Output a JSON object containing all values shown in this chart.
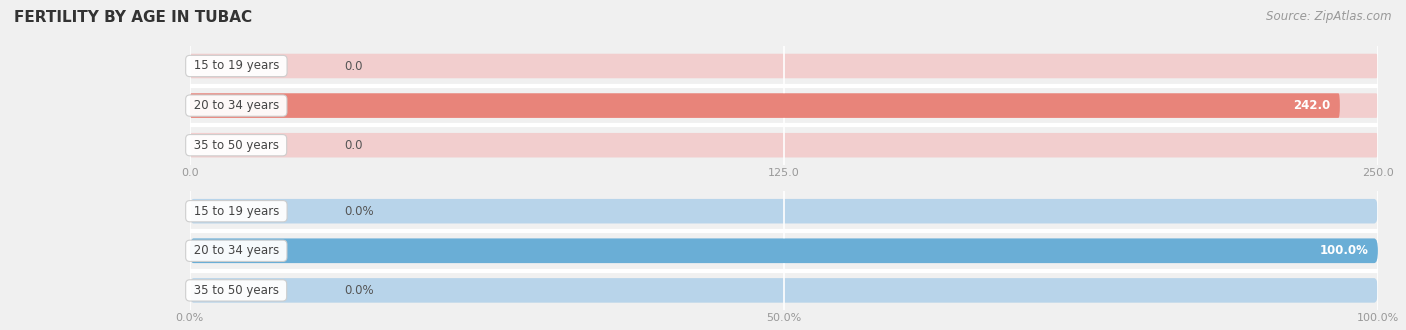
{
  "title": "FERTILITY BY AGE IN TUBAC",
  "source": "Source: ZipAtlas.com",
  "top_chart": {
    "categories": [
      "15 to 19 years",
      "20 to 34 years",
      "35 to 50 years"
    ],
    "values": [
      0.0,
      242.0,
      0.0
    ],
    "bar_color_full": "#e8847a",
    "bar_color_empty": "#f2cece",
    "bar_color_bg": "#ebebeb",
    "xlim": [
      0,
      250.0
    ],
    "xticks": [
      0.0,
      125.0,
      250.0
    ],
    "xtick_labels": [
      "0.0",
      "125.0",
      "250.0"
    ],
    "value_labels": [
      "0.0",
      "242.0",
      "0.0"
    ]
  },
  "bottom_chart": {
    "categories": [
      "15 to 19 years",
      "20 to 34 years",
      "35 to 50 years"
    ],
    "values": [
      0.0,
      100.0,
      0.0
    ],
    "bar_color_full": "#6aaed6",
    "bar_color_empty": "#b8d4ea",
    "bar_color_bg": "#ebebeb",
    "xlim": [
      0,
      100.0
    ],
    "xticks": [
      0.0,
      50.0,
      100.0
    ],
    "xtick_labels": [
      "0.0%",
      "50.0%",
      "100.0%"
    ],
    "value_labels": [
      "0.0%",
      "100.0%",
      "0.0%"
    ]
  },
  "bg_color": "#f0f0f0",
  "label_color": "#444444",
  "tick_color": "#999999",
  "label_fontsize": 8.5,
  "tick_fontsize": 8.0,
  "title_fontsize": 11,
  "source_fontsize": 8.5,
  "bar_height": 0.62,
  "label_box_facecolor_top": "#ffffff",
  "label_box_facecolor_bottom": "#ffffff",
  "value_label_color": "#555555",
  "value_label_color_white": "#ffffff"
}
